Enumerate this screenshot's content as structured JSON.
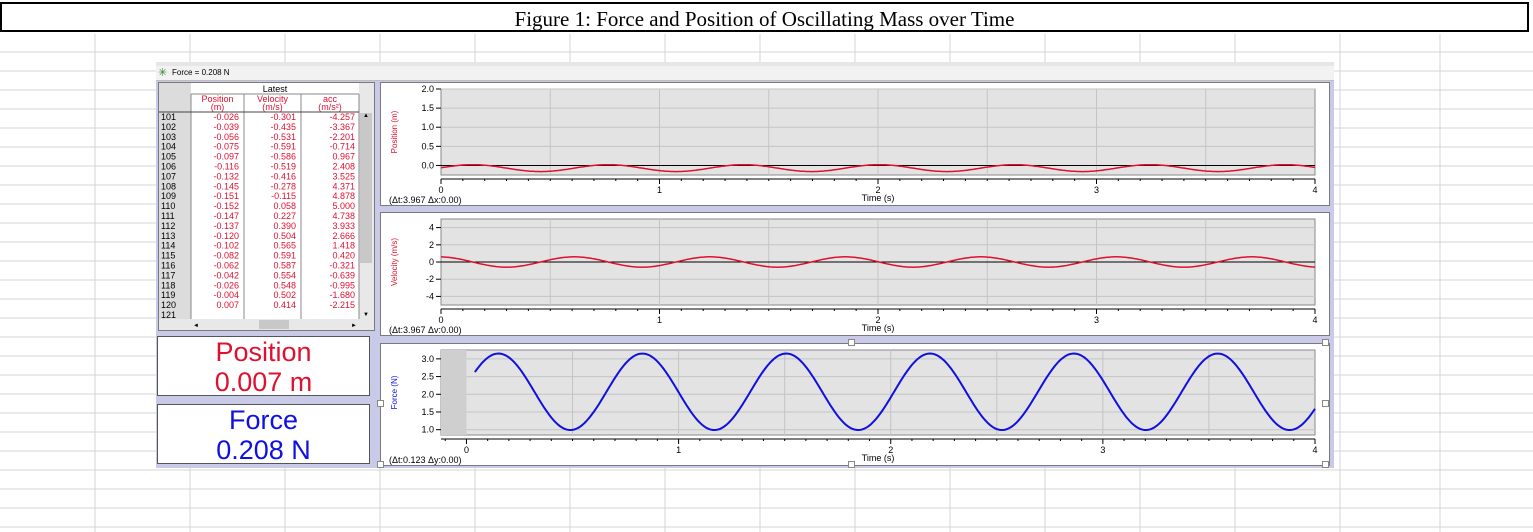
{
  "title": "Figure 1: Force and Position of Oscillating Mass over Time",
  "status_text": "Force = 0.208 N",
  "table": {
    "group_header": "Latest",
    "columns": [
      {
        "name": "Position",
        "unit": "(m)"
      },
      {
        "name": "Velocity",
        "unit": "(m/s)"
      },
      {
        "name": "acc",
        "unit": "(m/s²)"
      }
    ],
    "rows": [
      {
        "n": "101",
        "pos": "-0.026",
        "vel": "-0.301",
        "acc": "-4.257"
      },
      {
        "n": "102",
        "pos": "-0.039",
        "vel": "-0.435",
        "acc": "-3.367"
      },
      {
        "n": "103",
        "pos": "-0.056",
        "vel": "-0.531",
        "acc": "-2.201"
      },
      {
        "n": "104",
        "pos": "-0.075",
        "vel": "-0.591",
        "acc": "-0.714"
      },
      {
        "n": "105",
        "pos": "-0.097",
        "vel": "-0.586",
        "acc": "0.967"
      },
      {
        "n": "106",
        "pos": "-0.116",
        "vel": "-0.519",
        "acc": "2.408"
      },
      {
        "n": "107",
        "pos": "-0.132",
        "vel": "-0.416",
        "acc": "3.525"
      },
      {
        "n": "108",
        "pos": "-0.145",
        "vel": "-0.278",
        "acc": "4.371"
      },
      {
        "n": "109",
        "pos": "-0.151",
        "vel": "-0.115",
        "acc": "4.878"
      },
      {
        "n": "110",
        "pos": "-0.152",
        "vel": "0.058",
        "acc": "5.000"
      },
      {
        "n": "111",
        "pos": "-0.147",
        "vel": "0.227",
        "acc": "4.738"
      },
      {
        "n": "112",
        "pos": "-0.137",
        "vel": "0.390",
        "acc": "3.933"
      },
      {
        "n": "113",
        "pos": "-0.120",
        "vel": "0.504",
        "acc": "2.666"
      },
      {
        "n": "114",
        "pos": "-0.102",
        "vel": "0.565",
        "acc": "1.418"
      },
      {
        "n": "115",
        "pos": "-0.082",
        "vel": "0.591",
        "acc": "0.420"
      },
      {
        "n": "116",
        "pos": "-0.062",
        "vel": "0.587",
        "acc": "-0.321"
      },
      {
        "n": "117",
        "pos": "-0.042",
        "vel": "0.554",
        "acc": "-0.639"
      },
      {
        "n": "118",
        "pos": "-0.026",
        "vel": "0.548",
        "acc": "-0.995"
      },
      {
        "n": "119",
        "pos": "-0.004",
        "vel": "0.502",
        "acc": "-1.680"
      },
      {
        "n": "120",
        "pos": "0.007",
        "vel": "0.414",
        "acc": "-2.215"
      },
      {
        "n": "121",
        "pos": "",
        "vel": "",
        "acc": ""
      }
    ]
  },
  "meters": {
    "position": {
      "label": "Position",
      "value": "0.007 m"
    },
    "force": {
      "label": "Force",
      "value": "0.208 N"
    }
  },
  "colors": {
    "position": "#e0102f",
    "velocity": "#e0102f",
    "force": "#1010e0",
    "plot_bg": "#e3e3e3",
    "app_bg": "#c9c9e8"
  },
  "chart_data": [
    {
      "type": "line",
      "ylabel": "Position (m)",
      "xlabel": "Time (s)",
      "xlim": [
        0,
        4
      ],
      "ylim": [
        -0.25,
        2.0
      ],
      "yticks": [
        "0.0",
        "0.5",
        "1.0",
        "1.5",
        "2.0"
      ],
      "xticks": [
        "0",
        "1",
        "2",
        "3",
        "4"
      ],
      "delta_text": "(Δt:3.967 Δx:0.00)",
      "grid": true,
      "series": [
        {
          "mean": -0.07,
          "amplitude": 0.09,
          "period": 0.62,
          "phase": 0.1
        }
      ]
    },
    {
      "type": "line",
      "ylabel": "Velocity (m/s)",
      "xlabel": "Time (s)",
      "xlim": [
        0,
        4
      ],
      "ylim": [
        -5,
        5
      ],
      "yticks": [
        "-4",
        "-2",
        "0",
        "2",
        "4"
      ],
      "xticks": [
        "0",
        "1",
        "2",
        "3",
        "4"
      ],
      "delta_text": "(Δt:3.967 Δv:0.00)",
      "grid": true,
      "series": [
        {
          "mean": 0,
          "amplitude": 0.6,
          "period": 0.62,
          "phase": 1.67
        }
      ]
    },
    {
      "type": "line",
      "ylabel": "Force (N)",
      "xlabel": "Time (s)",
      "xlim": [
        -0.12,
        4
      ],
      "ylim": [
        0.85,
        3.25
      ],
      "yticks": [
        "1.0",
        "1.5",
        "2.0",
        "2.5",
        "3.0"
      ],
      "xticks": [
        "0",
        "1",
        "2",
        "3",
        "4"
      ],
      "delta_text": "(Δt:0.123 Δy:0.00)",
      "grid": true,
      "series": [
        {
          "mean": 2.07,
          "amplitude": 1.08,
          "period": 0.678,
          "phase": 0.17,
          "t_start": 0.04
        }
      ]
    }
  ]
}
